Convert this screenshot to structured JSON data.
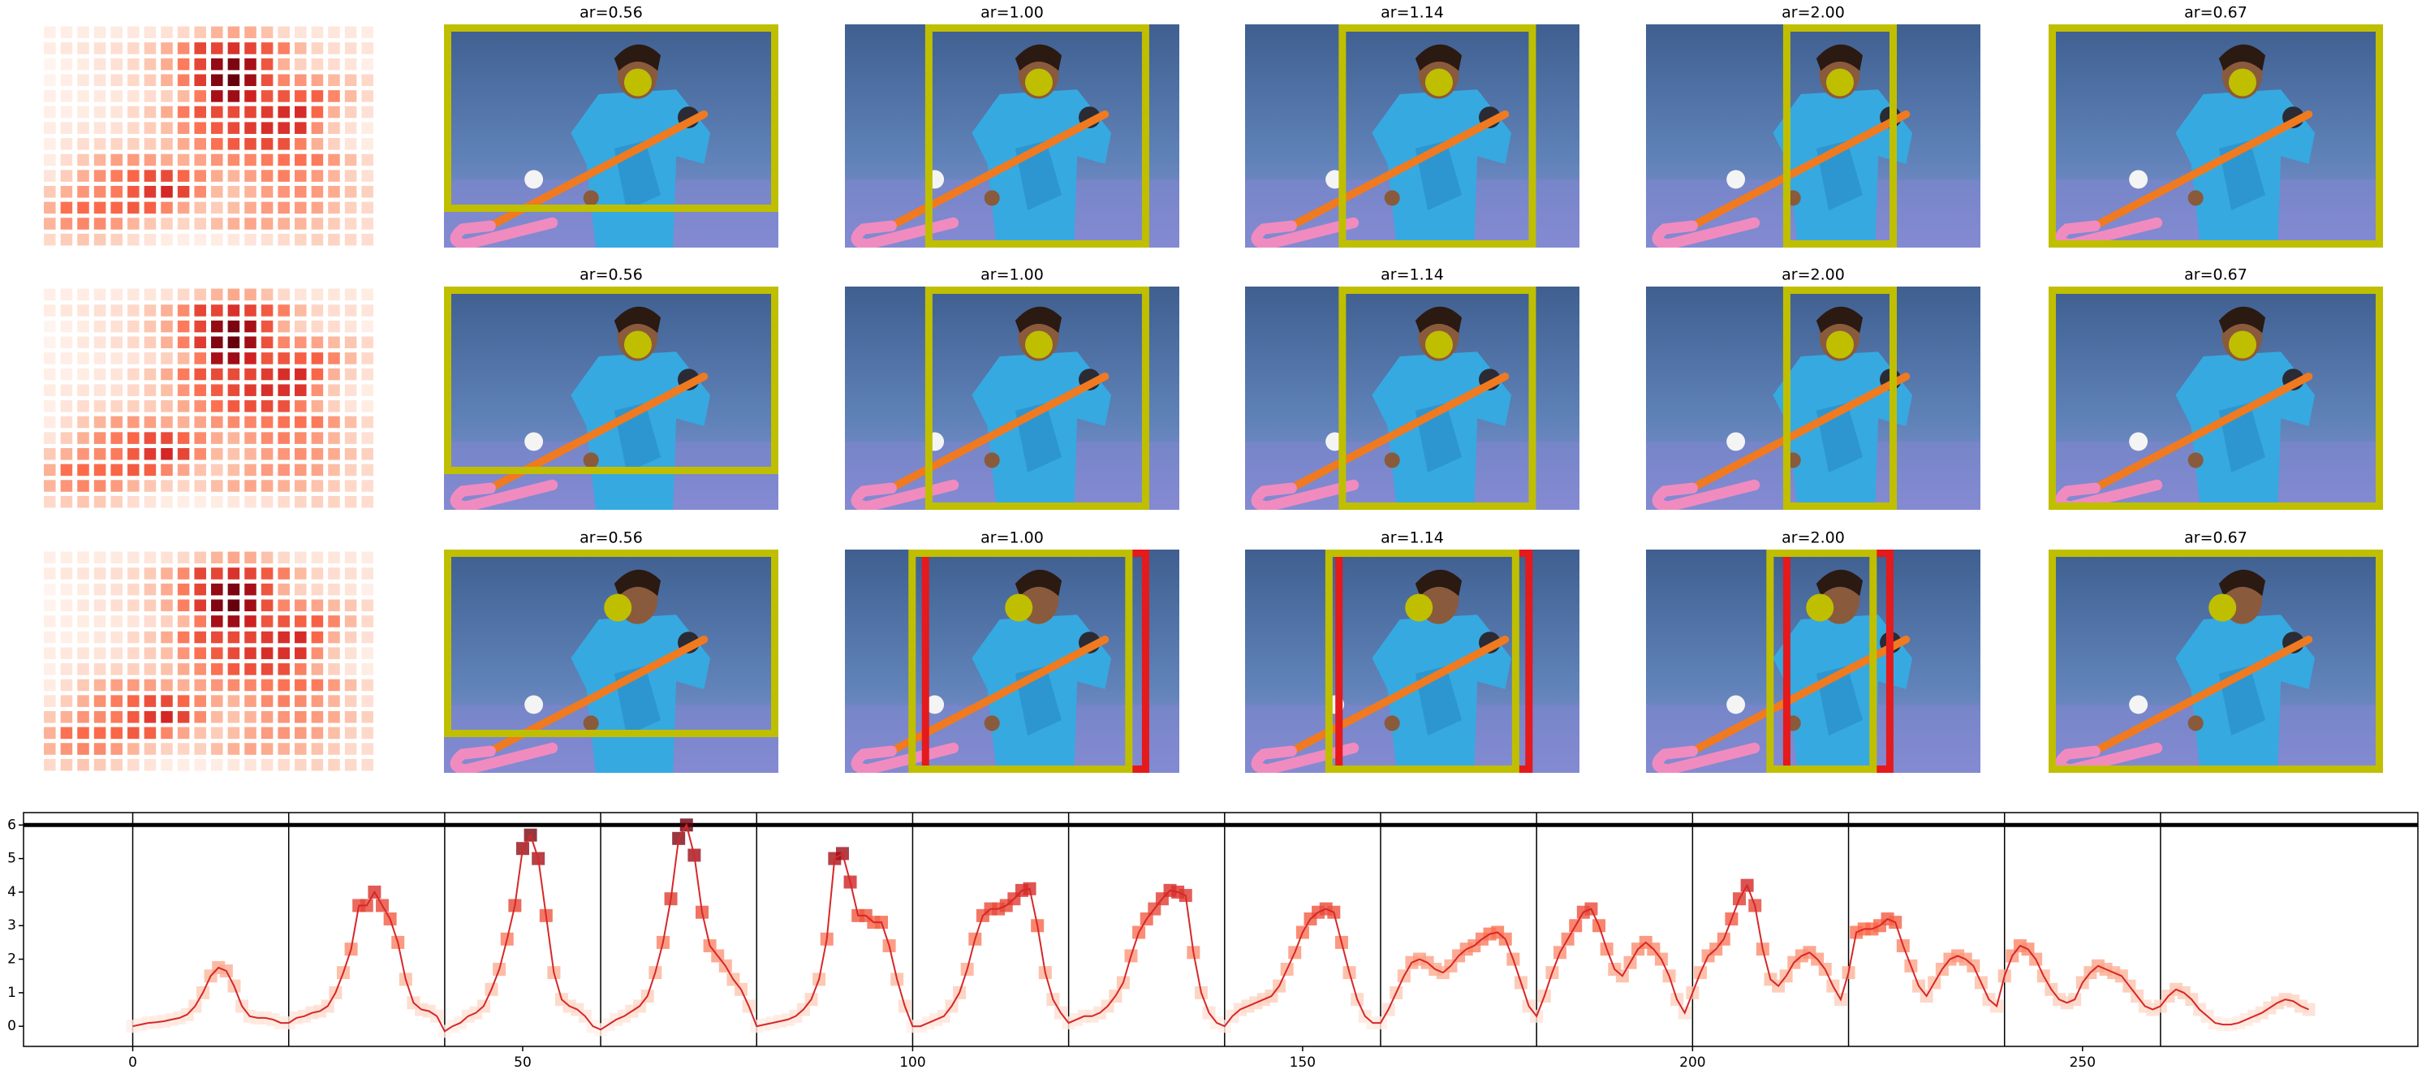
{
  "panel_titles": [
    [
      "ar=0.56",
      "ar=1.00",
      "ar=1.14",
      "ar=2.00",
      "ar=0.67"
    ],
    [
      "ar=0.56",
      "ar=1.00",
      "ar=1.14",
      "ar=2.00",
      "ar=0.67"
    ],
    [
      "ar=0.56",
      "ar=1.00",
      "ar=1.14",
      "ar=2.00",
      "ar=0.67"
    ]
  ],
  "chart_data": {
    "type": "line",
    "color": "#d62728",
    "cmap": [
      "#fff5f0",
      "#fcbba1",
      "#fb6a4a",
      "#cb181d",
      "#67000d"
    ],
    "x": [
      0,
      1,
      2,
      3,
      4,
      5,
      6,
      7,
      8,
      9,
      10,
      11,
      12,
      13,
      14,
      15,
      16,
      17,
      18,
      19,
      20,
      21,
      22,
      23,
      24,
      25,
      26,
      27,
      28,
      29,
      30,
      31,
      32,
      33,
      34,
      35,
      36,
      37,
      38,
      39,
      40,
      41,
      42,
      43,
      44,
      45,
      46,
      47,
      48,
      49,
      50,
      51,
      52,
      53,
      54,
      55,
      56,
      57,
      58,
      59,
      60,
      61,
      62,
      63,
      64,
      65,
      66,
      67,
      68,
      69,
      70,
      71,
      72,
      73,
      74,
      75,
      76,
      77,
      78,
      79,
      80,
      81,
      82,
      83,
      84,
      85,
      86,
      87,
      88,
      89,
      90,
      91,
      92,
      93,
      94,
      95,
      96,
      97,
      98,
      99,
      100,
      101,
      102,
      103,
      104,
      105,
      106,
      107,
      108,
      109,
      110,
      111,
      112,
      113,
      114,
      115,
      116,
      117,
      118,
      119,
      120,
      121,
      122,
      123,
      124,
      125,
      126,
      127,
      128,
      129,
      130,
      131,
      132,
      133,
      134,
      135,
      136,
      137,
      138,
      139,
      140,
      141,
      142,
      143,
      144,
      145,
      146,
      147,
      148,
      149,
      150,
      151,
      152,
      153,
      154,
      155,
      156,
      157,
      158,
      159,
      160,
      161,
      162,
      163,
      164,
      165,
      166,
      167,
      168,
      169,
      170,
      171,
      172,
      173,
      174,
      175,
      176,
      177,
      178,
      179,
      180,
      181,
      182,
      183,
      184,
      185,
      186,
      187,
      188,
      189,
      190,
      191,
      192,
      193,
      194,
      195,
      196,
      197,
      198,
      199,
      200,
      201,
      202,
      203,
      204,
      205,
      206,
      207,
      208,
      209,
      210,
      211,
      212,
      213,
      214,
      215,
      216,
      217,
      218,
      219,
      220,
      221,
      222,
      223,
      224,
      225,
      226,
      227,
      228,
      229,
      230,
      231,
      232,
      233,
      234,
      235,
      236,
      237,
      238,
      239,
      240,
      241,
      242,
      243,
      244,
      245,
      246,
      247,
      248,
      249,
      250,
      251,
      252,
      253,
      254,
      255,
      256,
      257,
      258,
      259,
      260,
      261,
      262,
      263,
      264,
      265,
      266,
      267,
      268,
      269,
      270,
      271,
      272,
      273,
      274,
      275,
      276,
      277,
      278,
      279
    ],
    "values": [
      0,
      0.05,
      0.1,
      0.12,
      0.15,
      0.2,
      0.25,
      0.35,
      0.6,
      1,
      1.5,
      1.75,
      1.65,
      1.2,
      0.6,
      0.3,
      0.25,
      0.25,
      0.2,
      0.1,
      0.1,
      0.25,
      0.3,
      0.4,
      0.45,
      0.6,
      1,
      1.6,
      2.3,
      3.6,
      3.6,
      4,
      3.6,
      3.2,
      2.5,
      1.4,
      0.7,
      0.5,
      0.45,
      0.3,
      -0.15,
      0,
      0.1,
      0.3,
      0.4,
      0.6,
      1.1,
      1.7,
      2.6,
      3.6,
      5.3,
      5.7,
      5,
      3.3,
      1.6,
      0.8,
      0.6,
      0.5,
      0.3,
      0,
      -0.1,
      0.05,
      0.2,
      0.3,
      0.45,
      0.6,
      0.9,
      1.6,
      2.5,
      3.8,
      5.6,
      6,
      5.1,
      3.4,
      2.4,
      2.1,
      1.8,
      1.4,
      1.1,
      0.6,
      0,
      0.05,
      0.1,
      0.15,
      0.2,
      0.3,
      0.5,
      0.8,
      1.4,
      2.6,
      5,
      5.15,
      4.3,
      3.3,
      3.3,
      3.1,
      3.1,
      2.4,
      1.4,
      0.6,
      0,
      0,
      0.1,
      0.2,
      0.3,
      0.6,
      1,
      1.7,
      2.6,
      3.3,
      3.5,
      3.5,
      3.6,
      3.8,
      4.05,
      4.1,
      3,
      1.6,
      0.8,
      0.4,
      0.1,
      0.2,
      0.3,
      0.3,
      0.4,
      0.6,
      0.9,
      1.3,
      2.1,
      2.8,
      3.2,
      3.5,
      3.8,
      4.05,
      4,
      3.9,
      2.2,
      1,
      0.4,
      0.1,
      0,
      0.3,
      0.5,
      0.6,
      0.7,
      0.8,
      0.9,
      1.2,
      1.7,
      2.2,
      2.8,
      3.2,
      3.4,
      3.5,
      3.4,
      2.5,
      1.6,
      0.8,
      0.3,
      0.1,
      0.1,
      0.5,
      1,
      1.5,
      1.9,
      2,
      1.9,
      1.7,
      1.6,
      1.8,
      2.1,
      2.3,
      2.4,
      2.6,
      2.75,
      2.8,
      2.6,
      2,
      1.3,
      0.6,
      0.3,
      0.9,
      1.6,
      2.2,
      2.6,
      3,
      3.4,
      3.5,
      3,
      2.3,
      1.7,
      1.5,
      1.9,
      2.3,
      2.5,
      2.3,
      2,
      1.5,
      0.8,
      0.4,
      1,
      1.6,
      2.1,
      2.3,
      2.6,
      3.2,
      3.8,
      4.2,
      3.6,
      2.3,
      1.4,
      1.2,
      1.5,
      1.9,
      2.1,
      2.2,
      2,
      1.7,
      1.2,
      0.8,
      1.6,
      2.8,
      2.9,
      2.9,
      3,
      3.2,
      3.1,
      2.4,
      1.8,
      1.2,
      0.9,
      1.3,
      1.7,
      2,
      2.1,
      2,
      1.8,
      1.3,
      0.8,
      0.6,
      1.5,
      2.1,
      2.4,
      2.3,
      2,
      1.5,
      1.1,
      0.8,
      0.7,
      0.8,
      1.3,
      1.6,
      1.8,
      1.7,
      1.6,
      1.5,
      1.2,
      0.9,
      0.6,
      0.5,
      0.6,
      0.9,
      1.1,
      1,
      0.8,
      0.5,
      0.3,
      0.1,
      0.05,
      0.05,
      0.1,
      0.2,
      0.3,
      0.4,
      0.55,
      0.7,
      0.8,
      0.75,
      0.6,
      0.5
    ],
    "xlim": [
      -14,
      293
    ],
    "ylim": [
      -0.6,
      6.37
    ],
    "xticks": [
      0,
      50,
      100,
      150,
      200,
      250
    ],
    "yticks": [
      0,
      1,
      2,
      3,
      4,
      5,
      6
    ],
    "vlines": [
      0,
      20,
      40,
      60,
      80,
      100,
      120,
      140,
      160,
      180,
      200,
      220,
      240,
      260
    ]
  }
}
